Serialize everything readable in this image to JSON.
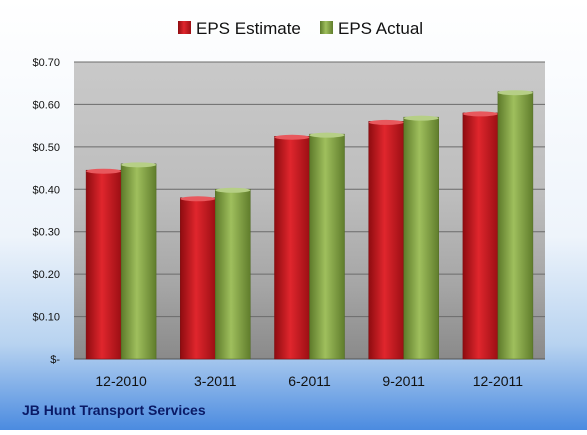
{
  "chart_data": {
    "type": "bar",
    "categories": [
      "12-2010",
      "3-2011",
      "6-2011",
      "9-2011",
      "12-2011"
    ],
    "series": [
      {
        "name": "EPS Estimate",
        "values": [
          0.445,
          0.38,
          0.525,
          0.56,
          0.58
        ],
        "color": "#c8161d"
      },
      {
        "name": "EPS Actual",
        "values": [
          0.46,
          0.4,
          0.53,
          0.57,
          0.63
        ],
        "color": "#8aa84a"
      }
    ],
    "y_ticks": [
      {
        "value": 0,
        "label": "$-"
      },
      {
        "value": 0.1,
        "label": "$0.10"
      },
      {
        "value": 0.2,
        "label": "$0.20"
      },
      {
        "value": 0.3,
        "label": "$0.30"
      },
      {
        "value": 0.4,
        "label": "$0.40"
      },
      {
        "value": 0.5,
        "label": "$0.50"
      },
      {
        "value": 0.6,
        "label": "$0.60"
      },
      {
        "value": 0.7,
        "label": "$0.70"
      }
    ],
    "ylim": [
      0,
      0.7
    ],
    "grid": true,
    "legend_position": "top",
    "footer": "JB Hunt Transport Services"
  }
}
